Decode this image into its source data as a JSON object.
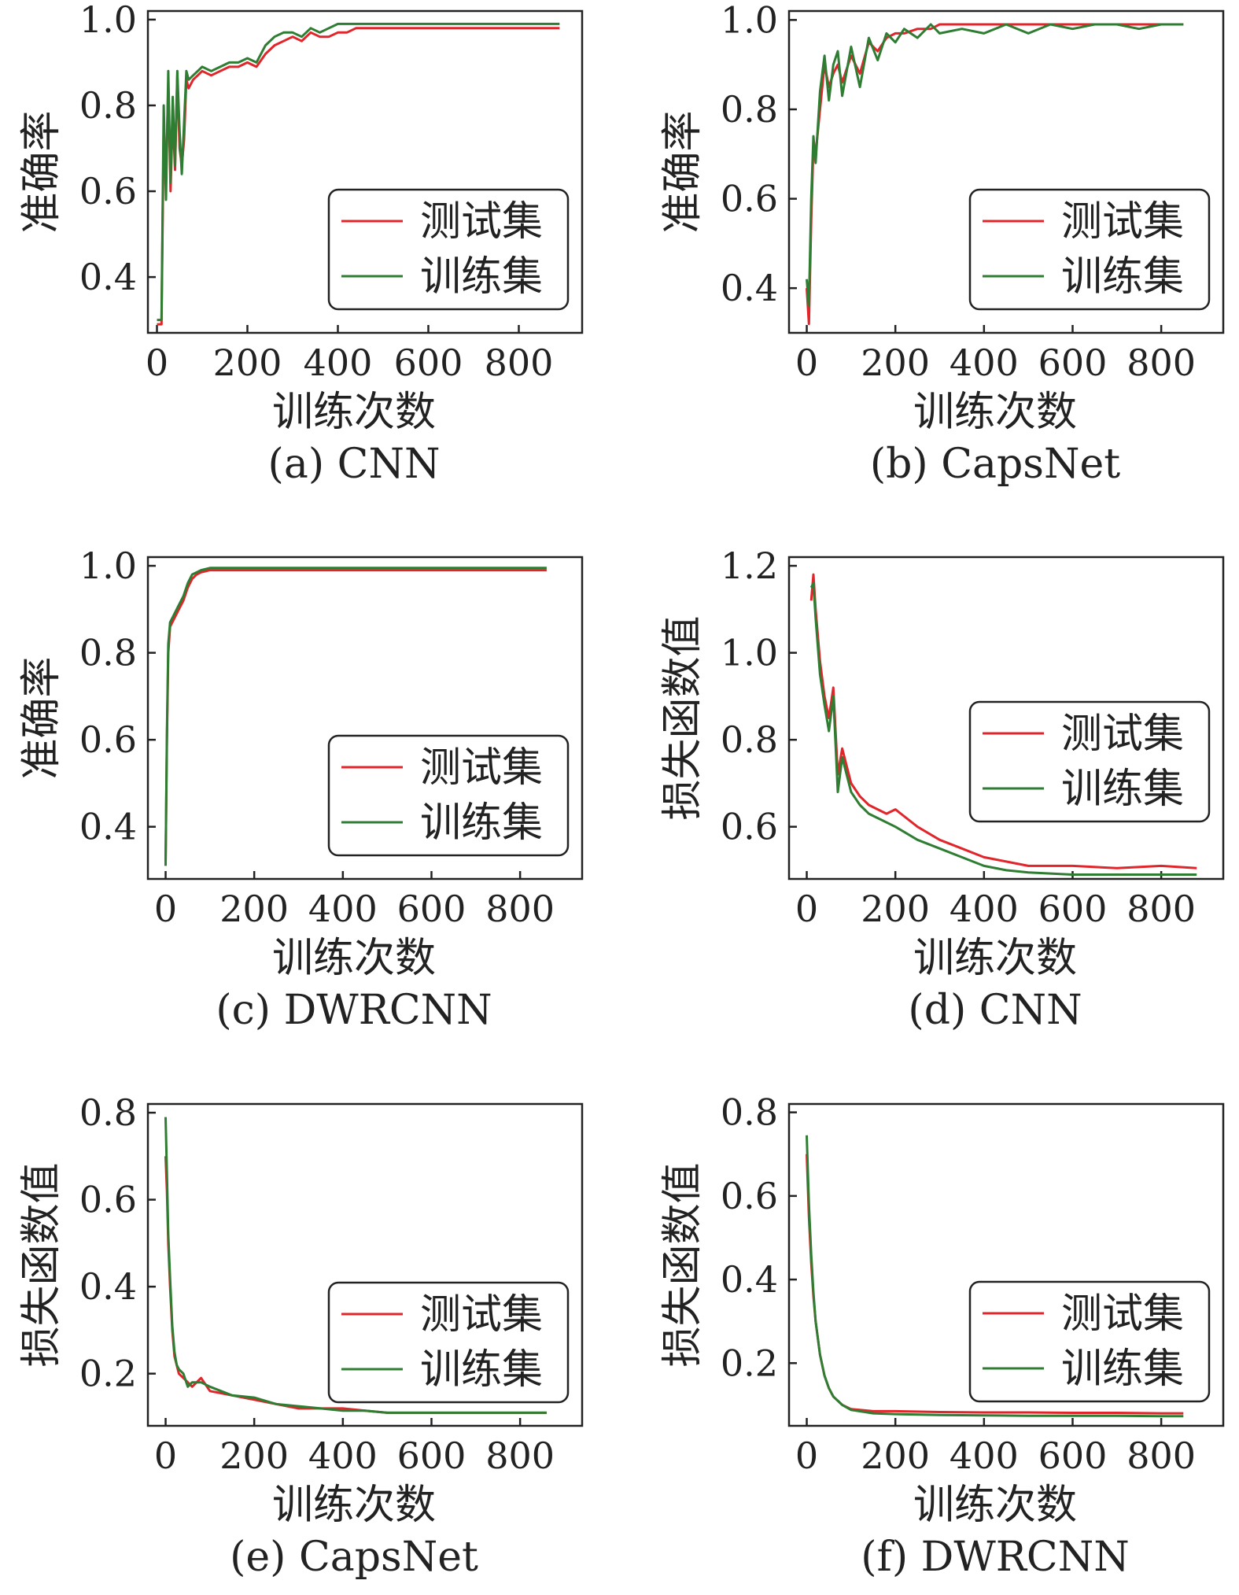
{
  "colors": {
    "test": "#e0252b",
    "train": "#2e7d32",
    "axis": "#222222"
  },
  "chart_data": [
    {
      "id": "a",
      "type": "line",
      "caption": "(a) CNN",
      "xlabel": "训练次数",
      "ylabel": "准确率",
      "xlim": [
        -20,
        940
      ],
      "ylim": [
        0.27,
        1.02
      ],
      "xticks": [
        0,
        200,
        400,
        600,
        800
      ],
      "yticks": [
        0.4,
        0.6,
        0.8,
        1.0
      ],
      "xtick_labels": [
        "0",
        "200",
        "400",
        "600",
        "800"
      ],
      "ytick_labels": [
        "0.4",
        "0.6",
        "0.8",
        "1.0"
      ],
      "legend": {
        "position": "lower-right"
      },
      "series": [
        {
          "name": "测试集",
          "color": "#e0252b",
          "x": [
            0,
            10,
            15,
            20,
            25,
            30,
            35,
            40,
            45,
            50,
            55,
            60,
            65,
            70,
            80,
            90,
            100,
            120,
            140,
            160,
            180,
            200,
            220,
            240,
            260,
            280,
            300,
            320,
            340,
            360,
            380,
            400,
            420,
            440,
            460,
            500,
            550,
            600,
            650,
            700,
            750,
            800,
            850,
            890
          ],
          "y": [
            0.29,
            0.29,
            0.75,
            0.62,
            0.85,
            0.6,
            0.78,
            0.65,
            0.87,
            0.7,
            0.66,
            0.72,
            0.86,
            0.84,
            0.86,
            0.87,
            0.88,
            0.87,
            0.88,
            0.89,
            0.89,
            0.9,
            0.89,
            0.92,
            0.94,
            0.95,
            0.96,
            0.95,
            0.97,
            0.96,
            0.96,
            0.97,
            0.97,
            0.98,
            0.98,
            0.98,
            0.98,
            0.98,
            0.98,
            0.98,
            0.98,
            0.98,
            0.98,
            0.98
          ]
        },
        {
          "name": "训练集",
          "color": "#2e7d32",
          "x": [
            0,
            10,
            15,
            20,
            25,
            30,
            35,
            40,
            45,
            50,
            55,
            60,
            65,
            70,
            80,
            90,
            100,
            120,
            140,
            160,
            180,
            200,
            220,
            240,
            260,
            280,
            300,
            320,
            340,
            360,
            380,
            400,
            420,
            440,
            460,
            500,
            550,
            600,
            650,
            700,
            750,
            800,
            850,
            890
          ],
          "y": [
            0.3,
            0.3,
            0.8,
            0.58,
            0.88,
            0.62,
            0.82,
            0.66,
            0.88,
            0.74,
            0.64,
            0.76,
            0.88,
            0.86,
            0.87,
            0.88,
            0.89,
            0.88,
            0.89,
            0.9,
            0.9,
            0.91,
            0.9,
            0.94,
            0.96,
            0.97,
            0.97,
            0.96,
            0.98,
            0.97,
            0.98,
            0.99,
            0.99,
            0.99,
            0.99,
            0.99,
            0.99,
            0.99,
            0.99,
            0.99,
            0.99,
            0.99,
            0.99,
            0.99
          ]
        }
      ]
    },
    {
      "id": "b",
      "type": "line",
      "caption": "(b) CapsNet",
      "xlabel": "训练次数",
      "ylabel": "准确率",
      "xlim": [
        -40,
        940
      ],
      "ylim": [
        0.3,
        1.02
      ],
      "xticks": [
        0,
        200,
        400,
        600,
        800
      ],
      "yticks": [
        0.4,
        0.6,
        0.8,
        1.0
      ],
      "xtick_labels": [
        "0",
        "200",
        "400",
        "600",
        "800"
      ],
      "ytick_labels": [
        "0.4",
        "0.6",
        "0.8",
        "1.0"
      ],
      "legend": {
        "position": "lower-right"
      },
      "series": [
        {
          "name": "测试集",
          "color": "#e0252b",
          "x": [
            0,
            5,
            10,
            15,
            20,
            30,
            40,
            50,
            60,
            70,
            80,
            100,
            120,
            140,
            160,
            180,
            200,
            220,
            250,
            280,
            300,
            350,
            400,
            450,
            500,
            550,
            600,
            650,
            700,
            750,
            800,
            850
          ],
          "y": [
            0.4,
            0.32,
            0.55,
            0.72,
            0.7,
            0.8,
            0.9,
            0.85,
            0.88,
            0.9,
            0.86,
            0.92,
            0.88,
            0.95,
            0.93,
            0.96,
            0.97,
            0.97,
            0.98,
            0.98,
            0.99,
            0.99,
            0.99,
            0.99,
            0.99,
            0.99,
            0.99,
            0.99,
            0.99,
            0.99,
            0.99,
            0.99
          ]
        },
        {
          "name": "训练集",
          "color": "#2e7d32",
          "x": [
            0,
            5,
            10,
            15,
            20,
            30,
            40,
            50,
            60,
            70,
            80,
            100,
            120,
            140,
            160,
            180,
            200,
            220,
            250,
            280,
            300,
            350,
            400,
            450,
            500,
            550,
            600,
            650,
            700,
            750,
            800,
            850
          ],
          "y": [
            0.42,
            0.36,
            0.6,
            0.74,
            0.68,
            0.84,
            0.92,
            0.82,
            0.9,
            0.93,
            0.83,
            0.94,
            0.85,
            0.96,
            0.91,
            0.97,
            0.95,
            0.98,
            0.96,
            0.99,
            0.97,
            0.98,
            0.97,
            0.99,
            0.97,
            0.99,
            0.98,
            0.99,
            0.99,
            0.98,
            0.99,
            0.99
          ]
        }
      ]
    },
    {
      "id": "c",
      "type": "line",
      "caption": "(c) DWRCNN",
      "xlabel": "训练次数",
      "ylabel": "准确率",
      "xlim": [
        -40,
        940
      ],
      "ylim": [
        0.28,
        1.02
      ],
      "xticks": [
        0,
        200,
        400,
        600,
        800
      ],
      "yticks": [
        0.4,
        0.6,
        0.8,
        1.0
      ],
      "xtick_labels": [
        "0",
        "200",
        "400",
        "600",
        "800"
      ],
      "ytick_labels": [
        "0.4",
        "0.6",
        "0.8",
        "1.0"
      ],
      "legend": {
        "position": "lower-right"
      },
      "series": [
        {
          "name": "测试集",
          "color": "#e0252b",
          "x": [
            0,
            3,
            6,
            10,
            15,
            20,
            30,
            40,
            50,
            60,
            70,
            80,
            100,
            150,
            200,
            250,
            300,
            400,
            500,
            600,
            700,
            800,
            860
          ],
          "y": [
            0.32,
            0.6,
            0.8,
            0.86,
            0.87,
            0.88,
            0.9,
            0.92,
            0.95,
            0.97,
            0.98,
            0.985,
            0.99,
            0.99,
            0.99,
            0.99,
            0.99,
            0.99,
            0.99,
            0.99,
            0.99,
            0.99,
            0.99
          ]
        },
        {
          "name": "训练集",
          "color": "#2e7d32",
          "x": [
            0,
            3,
            6,
            10,
            15,
            20,
            30,
            40,
            50,
            60,
            70,
            80,
            100,
            150,
            200,
            250,
            300,
            400,
            500,
            600,
            700,
            800,
            860
          ],
          "y": [
            0.31,
            0.62,
            0.82,
            0.87,
            0.88,
            0.89,
            0.91,
            0.93,
            0.96,
            0.98,
            0.985,
            0.99,
            0.995,
            0.995,
            0.995,
            0.995,
            0.995,
            0.995,
            0.995,
            0.995,
            0.995,
            0.995,
            0.995
          ]
        }
      ]
    },
    {
      "id": "d",
      "type": "line",
      "caption": "(d) CNN",
      "xlabel": "训练次数",
      "ylabel": "损失函数值",
      "xlim": [
        -40,
        940
      ],
      "ylim": [
        0.48,
        1.22
      ],
      "xticks": [
        0,
        200,
        400,
        600,
        800
      ],
      "yticks": [
        0.6,
        0.8,
        1.0,
        1.2
      ],
      "xtick_labels": [
        "0",
        "200",
        "400",
        "600",
        "800"
      ],
      "ytick_labels": [
        "0.6",
        "0.8",
        "1.0",
        "1.2"
      ],
      "legend": {
        "position": "upper-right"
      },
      "series": [
        {
          "name": "测试集",
          "color": "#e0252b",
          "x": [
            10,
            15,
            20,
            30,
            40,
            50,
            60,
            70,
            80,
            100,
            120,
            140,
            160,
            180,
            200,
            250,
            300,
            350,
            400,
            450,
            500,
            600,
            700,
            800,
            880
          ],
          "y": [
            1.12,
            1.18,
            1.1,
            0.98,
            0.9,
            0.85,
            0.92,
            0.72,
            0.78,
            0.7,
            0.67,
            0.65,
            0.64,
            0.63,
            0.64,
            0.6,
            0.57,
            0.55,
            0.53,
            0.52,
            0.51,
            0.51,
            0.505,
            0.51,
            0.505
          ]
        },
        {
          "name": "训练集",
          "color": "#2e7d32",
          "x": [
            10,
            15,
            20,
            30,
            40,
            50,
            60,
            70,
            80,
            100,
            120,
            140,
            160,
            180,
            200,
            250,
            300,
            350,
            400,
            450,
            500,
            600,
            700,
            800,
            880
          ],
          "y": [
            1.15,
            1.16,
            1.08,
            0.95,
            0.88,
            0.82,
            0.9,
            0.68,
            0.76,
            0.68,
            0.65,
            0.63,
            0.62,
            0.61,
            0.6,
            0.57,
            0.55,
            0.53,
            0.51,
            0.5,
            0.495,
            0.49,
            0.49,
            0.49,
            0.49
          ]
        }
      ]
    },
    {
      "id": "e",
      "type": "line",
      "caption": "(e) CapsNet",
      "xlabel": "训练次数",
      "ylabel": "损失函数值",
      "xlim": [
        -40,
        940
      ],
      "ylim": [
        0.08,
        0.82
      ],
      "xticks": [
        0,
        200,
        400,
        600,
        800
      ],
      "yticks": [
        0.2,
        0.4,
        0.6,
        0.8
      ],
      "xtick_labels": [
        "0",
        "200",
        "400",
        "600",
        "800"
      ],
      "ytick_labels": [
        "0.2",
        "0.4",
        "0.6",
        "0.8"
      ],
      "legend": {
        "position": "lower-right"
      },
      "series": [
        {
          "name": "测试集",
          "color": "#e0252b",
          "x": [
            0,
            3,
            6,
            10,
            15,
            20,
            25,
            30,
            40,
            50,
            60,
            80,
            100,
            150,
            200,
            250,
            300,
            350,
            400,
            450,
            500,
            600,
            700,
            800,
            860
          ],
          "y": [
            0.7,
            0.62,
            0.5,
            0.4,
            0.3,
            0.24,
            0.22,
            0.2,
            0.19,
            0.18,
            0.17,
            0.19,
            0.16,
            0.15,
            0.14,
            0.13,
            0.12,
            0.12,
            0.12,
            0.115,
            0.11,
            0.11,
            0.11,
            0.11,
            0.11
          ]
        },
        {
          "name": "训练集",
          "color": "#2e7d32",
          "x": [
            0,
            3,
            6,
            10,
            15,
            20,
            25,
            30,
            40,
            50,
            60,
            80,
            100,
            150,
            200,
            250,
            300,
            350,
            400,
            450,
            500,
            600,
            700,
            800,
            860
          ],
          "y": [
            0.79,
            0.66,
            0.52,
            0.42,
            0.31,
            0.25,
            0.22,
            0.21,
            0.2,
            0.17,
            0.18,
            0.18,
            0.17,
            0.15,
            0.145,
            0.13,
            0.125,
            0.12,
            0.115,
            0.115,
            0.11,
            0.11,
            0.11,
            0.11,
            0.11
          ]
        }
      ]
    },
    {
      "id": "f",
      "type": "line",
      "caption": "(f) DWRCNN",
      "xlabel": "训练次数",
      "ylabel": "损失函数值",
      "xlim": [
        -40,
        940
      ],
      "ylim": [
        0.05,
        0.82
      ],
      "xticks": [
        0,
        200,
        400,
        600,
        800
      ],
      "yticks": [
        0.2,
        0.4,
        0.6,
        0.8
      ],
      "xtick_labels": [
        "0",
        "200",
        "400",
        "600",
        "800"
      ],
      "ytick_labels": [
        "0.2",
        "0.4",
        "0.6",
        "0.8"
      ],
      "legend": {
        "position": "right"
      },
      "series": [
        {
          "name": "测试集",
          "color": "#e0252b",
          "x": [
            0,
            5,
            10,
            15,
            20,
            30,
            40,
            50,
            60,
            80,
            100,
            150,
            200,
            300,
            400,
            500,
            600,
            700,
            800,
            850
          ],
          "y": [
            0.7,
            0.55,
            0.44,
            0.36,
            0.3,
            0.22,
            0.17,
            0.14,
            0.12,
            0.1,
            0.09,
            0.085,
            0.085,
            0.083,
            0.082,
            0.082,
            0.081,
            0.081,
            0.08,
            0.08
          ]
        },
        {
          "name": "训练集",
          "color": "#2e7d32",
          "x": [
            0,
            5,
            10,
            15,
            20,
            30,
            40,
            50,
            60,
            80,
            100,
            150,
            200,
            300,
            400,
            500,
            600,
            700,
            800,
            850
          ],
          "y": [
            0.745,
            0.58,
            0.46,
            0.37,
            0.3,
            0.22,
            0.17,
            0.14,
            0.12,
            0.1,
            0.088,
            0.08,
            0.078,
            0.076,
            0.075,
            0.074,
            0.074,
            0.074,
            0.073,
            0.073
          ]
        }
      ]
    }
  ]
}
